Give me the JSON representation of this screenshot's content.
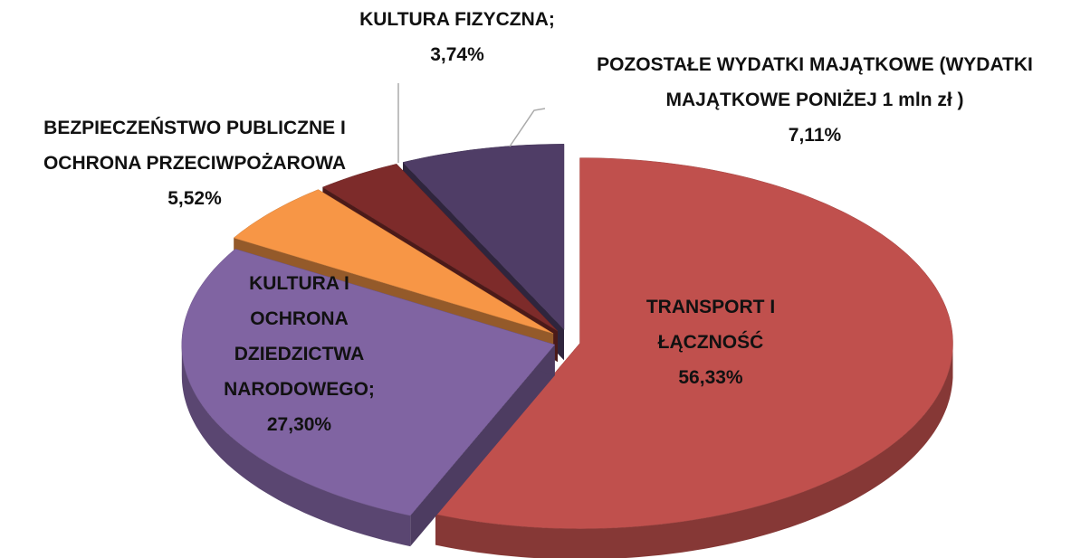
{
  "chart_data": {
    "type": "pie3d",
    "categories": [
      "TRANSPORT I ŁĄCZNOŚĆ",
      "KULTURA I OCHRONA DZIEDZICTWA NARODOWEGO;",
      "BEZPIECZEŃSTWO PUBLICZNE I OCHRONA PRZECIWPOŻAROWA",
      "KULTURA FIZYCZNA;",
      "POZOSTAŁE WYDATKI MAJĄTKOWE (WYDATKI MAJĄTKOWE PONIŻEJ 1 mln zł )"
    ],
    "values": [
      56.33,
      27.3,
      5.52,
      3.74,
      7.11
    ],
    "value_labels": [
      "56,33%",
      "27,30%",
      "5,52%",
      "3,74%",
      "7,11%"
    ],
    "colors": [
      "#c0504d",
      "#8064a2",
      "#f79646",
      "#7d2b2a",
      "#4f3d66"
    ]
  }
}
